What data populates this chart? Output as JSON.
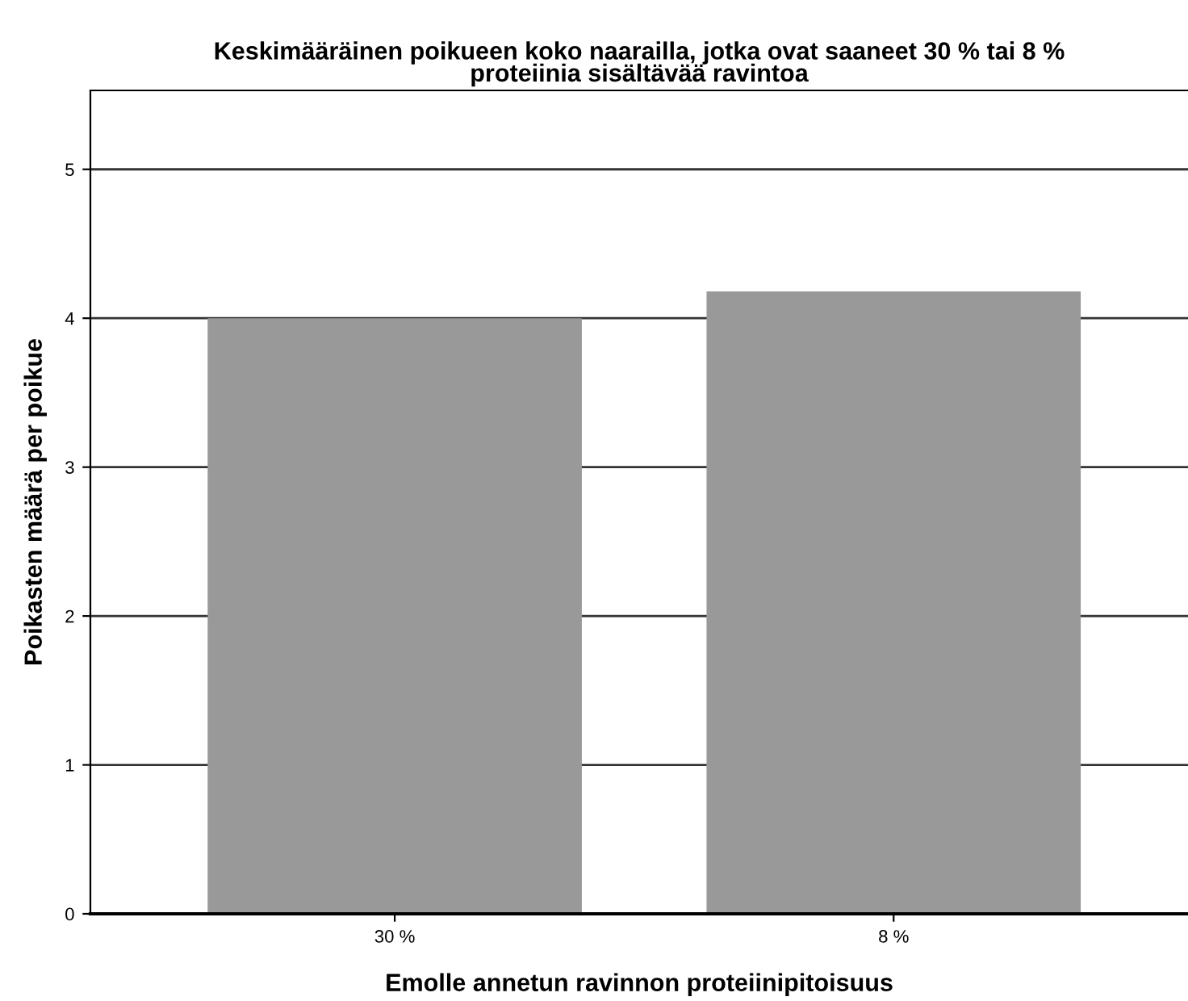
{
  "chart_data": {
    "type": "bar",
    "title": "Keskimääräinen poikueen koko naarailla, jotka ovat saaneet 30 % tai 8 %\nproteiinia sisältävää ravintoa",
    "xlabel": "Emolle annetun ravinnon proteiinipitoisuus",
    "ylabel": "Poikasten määrä per poikue",
    "categories": [
      "30 %",
      "8 %"
    ],
    "values": [
      4.0,
      4.18
    ],
    "color": "#999999",
    "ylim": [
      0,
      5.53
    ],
    "yticks": [
      0,
      1,
      2,
      3,
      4,
      5
    ],
    "grid": "y"
  }
}
